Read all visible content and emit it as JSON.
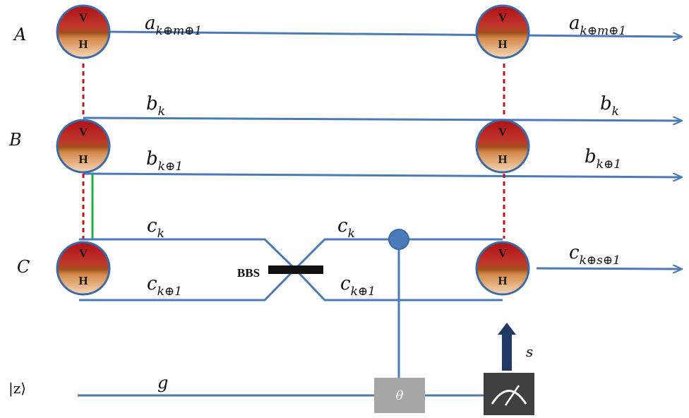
{
  "rows": {
    "A": "A",
    "B": "B",
    "C": "C",
    "ancilla": "|z⟩"
  },
  "qubit": {
    "top": "V",
    "bottom": "H"
  },
  "modes": {
    "a_left": {
      "base": "a",
      "sub": "k⊕m⊕1"
    },
    "a_right": {
      "base": "a",
      "sub": "k⊕m⊕1"
    },
    "b_top_left": {
      "base": "b",
      "sub": "k"
    },
    "b_top_right": {
      "base": "b",
      "sub": "k"
    },
    "b_bot_left": {
      "base": "b",
      "sub": "k⊕1"
    },
    "b_bot_right": {
      "base": "b",
      "sub": "k⊕1"
    },
    "c_top_left": {
      "base": "c",
      "sub": "k"
    },
    "c_top_mid": {
      "base": "c",
      "sub": "k"
    },
    "c_bot_left": {
      "base": "c",
      "sub": "k⊕1"
    },
    "c_bot_mid": {
      "base": "c",
      "sub": "k⊕1"
    },
    "c_right": {
      "base": "c",
      "sub": "k⊕s⊕1"
    },
    "g": "g"
  },
  "bbs_label": "BBS",
  "theta_label": "θ",
  "s_label": "s",
  "colors": {
    "line": "#4a7ab8",
    "dashed": "#c0141c",
    "green": "#20b040",
    "box_gray": "#a6a6a6",
    "meter_dark": "#3f3f3f",
    "arrow_navy": "#1f3864",
    "circle_top": "#c0141c",
    "circle_bottom": "#f2c9a0"
  }
}
